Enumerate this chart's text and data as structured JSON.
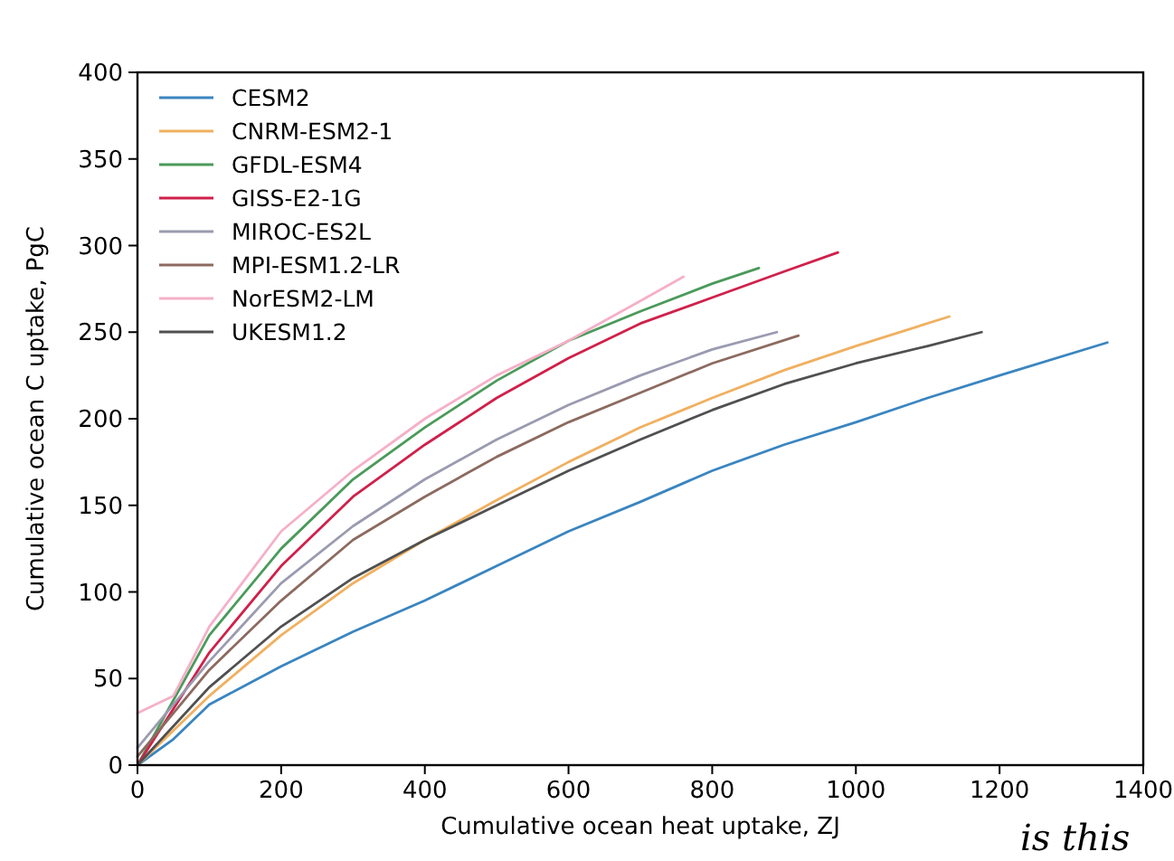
{
  "chart_data": {
    "type": "line",
    "xlabel": "Cumulative ocean heat uptake, ZJ",
    "ylabel": "Cumulative ocean C uptake, PgC",
    "xlim": [
      0,
      1400
    ],
    "ylim": [
      0,
      400
    ],
    "xticks": [
      0,
      200,
      400,
      600,
      800,
      1000,
      1200,
      1400
    ],
    "yticks": [
      0,
      50,
      100,
      150,
      200,
      250,
      300,
      350,
      400
    ],
    "grid": false,
    "legend": "top left",
    "marker": "none",
    "line_style": "solid",
    "annotations": [
      "is this"
    ],
    "series": [
      {
        "name": "CESM2",
        "color": "#3a85c0",
        "x": [
          0,
          50,
          100,
          200,
          300,
          400,
          500,
          600,
          700,
          800,
          900,
          1000,
          1100,
          1200,
          1350
        ],
        "values": [
          0,
          15,
          35,
          57,
          77,
          95,
          115,
          135,
          152,
          170,
          185,
          198,
          212,
          225,
          244
        ]
      },
      {
        "name": "CNRM-ESM2-1",
        "color": "#f0b060",
        "x": [
          0,
          100,
          200,
          300,
          400,
          500,
          600,
          700,
          800,
          900,
          1000,
          1130
        ],
        "values": [
          0,
          40,
          75,
          105,
          130,
          153,
          175,
          195,
          212,
          228,
          242,
          259
        ]
      },
      {
        "name": "GFDL-ESM4",
        "color": "#4a9a5a",
        "x": [
          0,
          100,
          200,
          300,
          400,
          500,
          600,
          700,
          800,
          865
        ],
        "values": [
          0,
          75,
          125,
          165,
          195,
          222,
          245,
          262,
          278,
          287
        ]
      },
      {
        "name": "GISS-E2-1G",
        "color": "#d0204a",
        "x": [
          0,
          100,
          200,
          300,
          400,
          500,
          600,
          700,
          800,
          900,
          975
        ],
        "values": [
          0,
          65,
          115,
          155,
          185,
          212,
          235,
          255,
          270,
          285,
          296
        ]
      },
      {
        "name": "MIROC-ES2L",
        "color": "#9a9ab0",
        "x": [
          0,
          100,
          200,
          300,
          400,
          500,
          600,
          700,
          800,
          890
        ],
        "values": [
          10,
          60,
          105,
          138,
          165,
          188,
          208,
          225,
          240,
          250
        ]
      },
      {
        "name": "MPI-ESM1.2-LR",
        "color": "#8c6a60",
        "x": [
          0,
          100,
          200,
          300,
          400,
          500,
          600,
          700,
          800,
          920
        ],
        "values": [
          5,
          55,
          95,
          130,
          155,
          178,
          198,
          215,
          232,
          248
        ]
      },
      {
        "name": "NorESM2-LM",
        "color": "#f5b0c8",
        "x": [
          0,
          50,
          100,
          200,
          300,
          400,
          500,
          600,
          700,
          760
        ],
        "values": [
          30,
          40,
          80,
          135,
          170,
          200,
          225,
          245,
          268,
          282
        ]
      },
      {
        "name": "UKESM1.2",
        "color": "#505050",
        "x": [
          0,
          100,
          200,
          300,
          400,
          500,
          600,
          700,
          800,
          900,
          1000,
          1100,
          1175
        ],
        "values": [
          0,
          45,
          80,
          108,
          130,
          150,
          170,
          188,
          205,
          220,
          232,
          242,
          250
        ]
      }
    ]
  }
}
